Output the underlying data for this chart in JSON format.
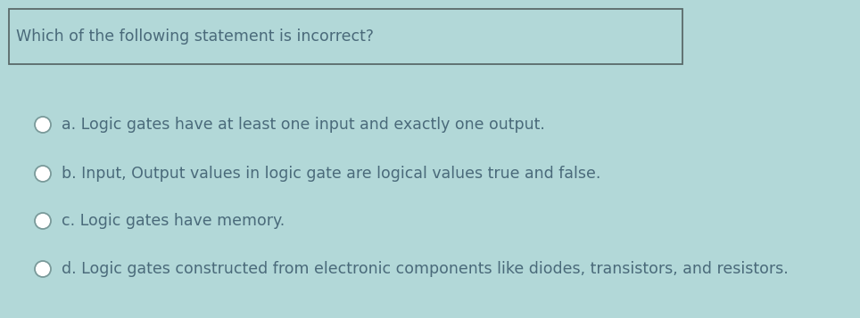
{
  "bg_color": "#b2d8d8",
  "box_edge_color": "#5a6a6a",
  "text_color": "#4a6a7a",
  "circle_fill": "#ffffff",
  "circle_edge": "#7a9a9a",
  "question": "Which of the following statement is incorrect?",
  "options": [
    "a. Logic gates have at least one input and exactly one output.",
    "b. Input, Output values in logic gate are logical values true and false.",
    "c. Logic gates have memory.",
    "d. Logic gates constructed from electronic components like diodes, transistors, and resistors."
  ],
  "question_fontsize": 12.5,
  "option_fontsize": 12.5,
  "fig_width": 9.64,
  "fig_height": 3.57,
  "dpi": 100
}
